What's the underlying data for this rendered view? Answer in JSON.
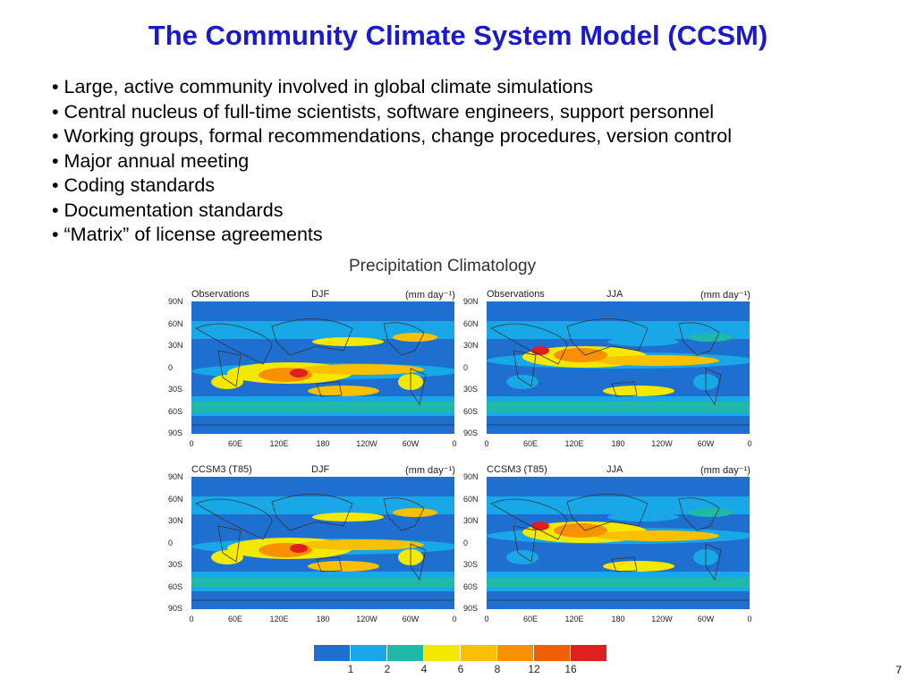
{
  "slide": {
    "title": "The Community Climate System Model (CCSM)",
    "bullets": [
      "• Large, active community involved in global climate simulations",
      "• Central nucleus of full-time scientists, software engineers, support personnel",
      "• Working groups, formal recommendations, change procedures, version control",
      "• Major annual meeting",
      "• Coding standards",
      "• Documentation standards",
      "• “Matrix” of license agreements"
    ],
    "page_number": "7"
  },
  "figure": {
    "title": "Precipitation Climatology",
    "units": "(mm day⁻¹)",
    "panels": [
      {
        "source": "Observations",
        "season": "DJF"
      },
      {
        "source": "Observations",
        "season": "JJA"
      },
      {
        "source": "CCSM3 (T85)",
        "season": "DJF"
      },
      {
        "source": "CCSM3 (T85)",
        "season": "JJA"
      }
    ],
    "lat_ticks": [
      "90N",
      "60N",
      "30N",
      "0",
      "30S",
      "60S",
      "90S"
    ],
    "lon_ticks": [
      "0",
      "60E",
      "120E",
      "180",
      "120W",
      "60W",
      "0"
    ],
    "colorbar": {
      "labels": [
        "1",
        "2",
        "4",
        "6",
        "8",
        "12",
        "16"
      ],
      "colors": [
        "#1f6fd0",
        "#18a8e8",
        "#20b8a8",
        "#f5e800",
        "#f8c000",
        "#f89000",
        "#f06000",
        "#e02020"
      ]
    }
  }
}
